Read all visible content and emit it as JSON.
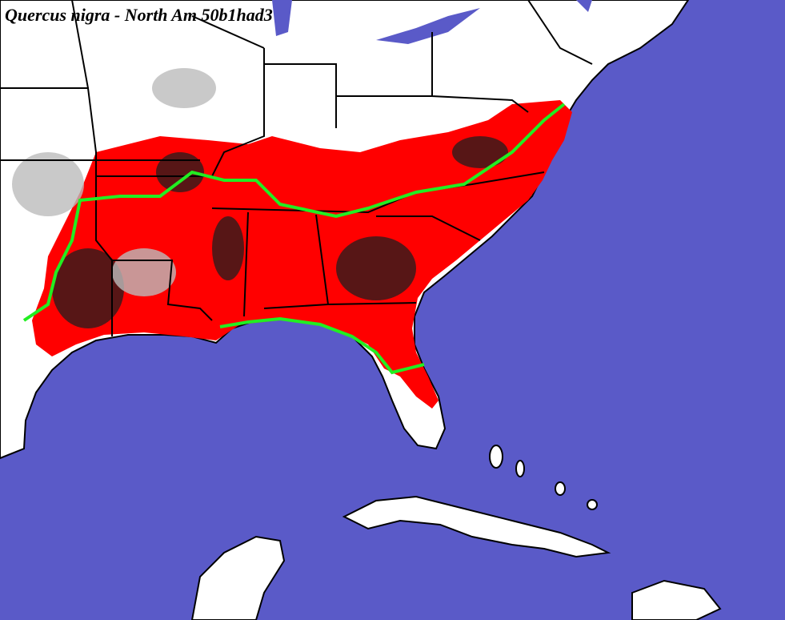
{
  "header": {
    "title": "Quercus nigra - North Am 50b1had3"
  }
}
